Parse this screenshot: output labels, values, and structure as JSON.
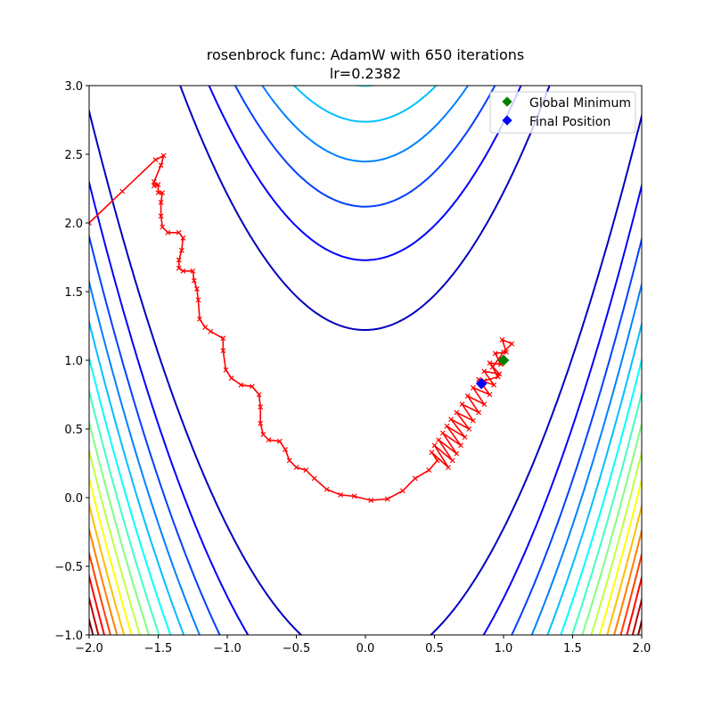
{
  "chart_data": {
    "type": "line",
    "title": "rosenbrock func: AdamW with 650 iterations",
    "subtitle": "lr=0.2382",
    "xlabel": "",
    "ylabel": "",
    "xlim": [
      -2.0,
      2.0
    ],
    "ylim": [
      -1.0,
      3.0
    ],
    "xticks": [
      "−2.0",
      "−1.5",
      "−1.0",
      "−0.5",
      "0.0",
      "0.5",
      "1.0",
      "1.5",
      "2.0"
    ],
    "xtick_values": [
      -2.0,
      -1.5,
      -1.0,
      -0.5,
      0.0,
      0.5,
      1.0,
      1.5,
      2.0
    ],
    "yticks": [
      "−1.0",
      "−0.5",
      "0.0",
      "0.5",
      "1.0",
      "1.5",
      "2.0",
      "2.5",
      "3.0"
    ],
    "ytick_values": [
      -1.0,
      -0.5,
      0.0,
      0.5,
      1.0,
      1.5,
      2.0,
      2.5,
      3.0
    ],
    "grid": false,
    "contour": {
      "function": "rosenbrock (1-x)^2 + 100(y-x^2)^2",
      "levels": [
        150,
        300,
        450,
        600,
        750,
        900,
        1050,
        1200,
        1350,
        1500,
        1650,
        1800,
        1950,
        2100,
        2250,
        2400
      ],
      "level_range": [
        0,
        2400
      ],
      "colormap": "jet"
    },
    "legend": {
      "placement": "top-right",
      "entries": [
        {
          "label": "Global Minimum",
          "color": "#008000",
          "marker": "diamond"
        },
        {
          "label": "Final Position",
          "color": "#0000ff",
          "marker": "diamond"
        }
      ]
    },
    "global_minimum": [
      1.0,
      1.0
    ],
    "final_position": [
      0.84,
      0.83
    ],
    "path_color": "#ff0000",
    "path": [
      [
        -2.0,
        2.0
      ],
      [
        -1.76,
        2.23
      ],
      [
        -1.52,
        2.46
      ],
      [
        -1.46,
        2.49
      ],
      [
        -1.48,
        2.42
      ],
      [
        -1.53,
        2.3
      ],
      [
        -1.53,
        2.27
      ],
      [
        -1.5,
        2.28
      ],
      [
        -1.5,
        2.22
      ],
      [
        -1.47,
        2.22
      ],
      [
        -1.48,
        2.15
      ],
      [
        -1.48,
        2.05
      ],
      [
        -1.47,
        1.97
      ],
      [
        -1.43,
        1.93
      ],
      [
        -1.35,
        1.93
      ],
      [
        -1.32,
        1.89
      ],
      [
        -1.33,
        1.8
      ],
      [
        -1.35,
        1.73
      ],
      [
        -1.35,
        1.67
      ],
      [
        -1.32,
        1.65
      ],
      [
        -1.25,
        1.65
      ],
      [
        -1.24,
        1.58
      ],
      [
        -1.22,
        1.52
      ],
      [
        -1.21,
        1.44
      ],
      [
        -1.2,
        1.3
      ],
      [
        -1.16,
        1.24
      ],
      [
        -1.12,
        1.21
      ],
      [
        -1.03,
        1.16
      ],
      [
        -1.03,
        1.07
      ],
      [
        -1.01,
        0.93
      ],
      [
        -0.97,
        0.87
      ],
      [
        -0.9,
        0.82
      ],
      [
        -0.82,
        0.81
      ],
      [
        -0.77,
        0.75
      ],
      [
        -0.76,
        0.66
      ],
      [
        -0.76,
        0.54
      ],
      [
        -0.74,
        0.46
      ],
      [
        -0.7,
        0.42
      ],
      [
        -0.62,
        0.41
      ],
      [
        -0.58,
        0.35
      ],
      [
        -0.55,
        0.27
      ],
      [
        -0.5,
        0.22
      ],
      [
        -0.43,
        0.2
      ],
      [
        -0.37,
        0.14
      ],
      [
        -0.28,
        0.06
      ],
      [
        -0.18,
        0.02
      ],
      [
        -0.08,
        0.01
      ],
      [
        0.04,
        -0.02
      ],
      [
        0.16,
        -0.01
      ],
      [
        0.27,
        0.05
      ],
      [
        0.36,
        0.14
      ],
      [
        0.46,
        0.2
      ],
      [
        0.52,
        0.27
      ],
      [
        0.48,
        0.33
      ],
      [
        0.6,
        0.22
      ],
      [
        0.5,
        0.38
      ],
      [
        0.63,
        0.27
      ],
      [
        0.53,
        0.42
      ],
      [
        0.66,
        0.32
      ],
      [
        0.56,
        0.47
      ],
      [
        0.69,
        0.38
      ],
      [
        0.59,
        0.52
      ],
      [
        0.72,
        0.44
      ],
      [
        0.62,
        0.57
      ],
      [
        0.75,
        0.5
      ],
      [
        0.66,
        0.62
      ],
      [
        0.78,
        0.56
      ],
      [
        0.7,
        0.68
      ],
      [
        0.82,
        0.62
      ],
      [
        0.74,
        0.74
      ],
      [
        0.86,
        0.68
      ],
      [
        0.78,
        0.8
      ],
      [
        0.9,
        0.75
      ],
      [
        0.82,
        0.86
      ],
      [
        0.93,
        0.82
      ],
      [
        0.86,
        0.92
      ],
      [
        0.97,
        0.9
      ],
      [
        0.9,
        0.98
      ],
      [
        0.98,
        0.97
      ],
      [
        0.94,
        1.05
      ],
      [
        1.02,
        1.06
      ],
      [
        0.99,
        1.15
      ],
      [
        1.06,
        1.12
      ],
      [
        1.0,
        1.06
      ],
      [
        0.92,
        0.95
      ],
      [
        0.96,
        0.88
      ],
      [
        0.86,
        0.85
      ],
      [
        0.84,
        0.83
      ]
    ]
  }
}
